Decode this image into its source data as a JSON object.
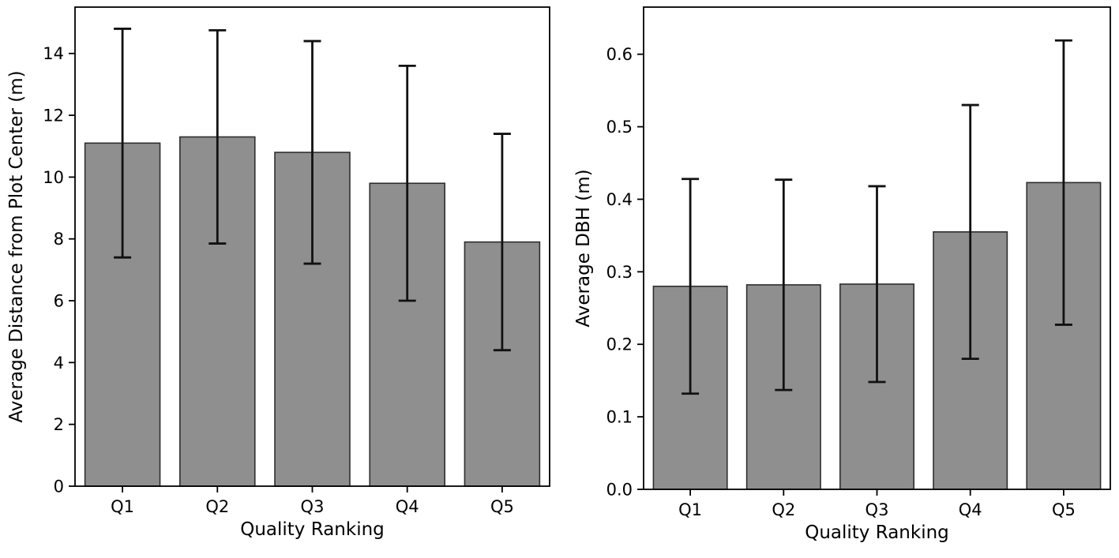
{
  "figure": {
    "background": "#ffffff",
    "bar_fill": "#8f8f8f",
    "bar_edge": "#2e2e2e",
    "error_color": "#111111",
    "axis_color": "#000000"
  },
  "chart_data": [
    {
      "id": "distance",
      "type": "bar",
      "title": "",
      "categories": [
        "Q1",
        "Q2",
        "Q3",
        "Q4",
        "Q5"
      ],
      "values": [
        11.1,
        11.3,
        10.8,
        9.8,
        7.9
      ],
      "errors": [
        3.7,
        3.45,
        3.6,
        3.8,
        3.5
      ],
      "xlabel": "Quality Ranking",
      "ylabel": "Average Distance from Plot Center (m)",
      "ylim": [
        0,
        15.5
      ],
      "yticks": [
        0,
        2,
        4,
        6,
        8,
        10,
        12,
        14
      ],
      "ytick_labels": [
        "0",
        "2",
        "4",
        "6",
        "8",
        "10",
        "12",
        "14"
      ],
      "grid": false,
      "legend": null
    },
    {
      "id": "dbh",
      "type": "bar",
      "title": "",
      "categories": [
        "Q1",
        "Q2",
        "Q3",
        "Q4",
        "Q5"
      ],
      "values": [
        0.28,
        0.282,
        0.283,
        0.355,
        0.423
      ],
      "errors": [
        0.148,
        0.145,
        0.135,
        0.175,
        0.196
      ],
      "xlabel": "Quality Ranking",
      "ylabel": "Average DBH (m)",
      "ylim": [
        0,
        0.665
      ],
      "yticks": [
        0.0,
        0.1,
        0.2,
        0.3,
        0.4,
        0.5,
        0.6
      ],
      "ytick_labels": [
        "0.0",
        "0.1",
        "0.2",
        "0.3",
        "0.4",
        "0.5",
        "0.6"
      ],
      "grid": false,
      "legend": null
    }
  ]
}
